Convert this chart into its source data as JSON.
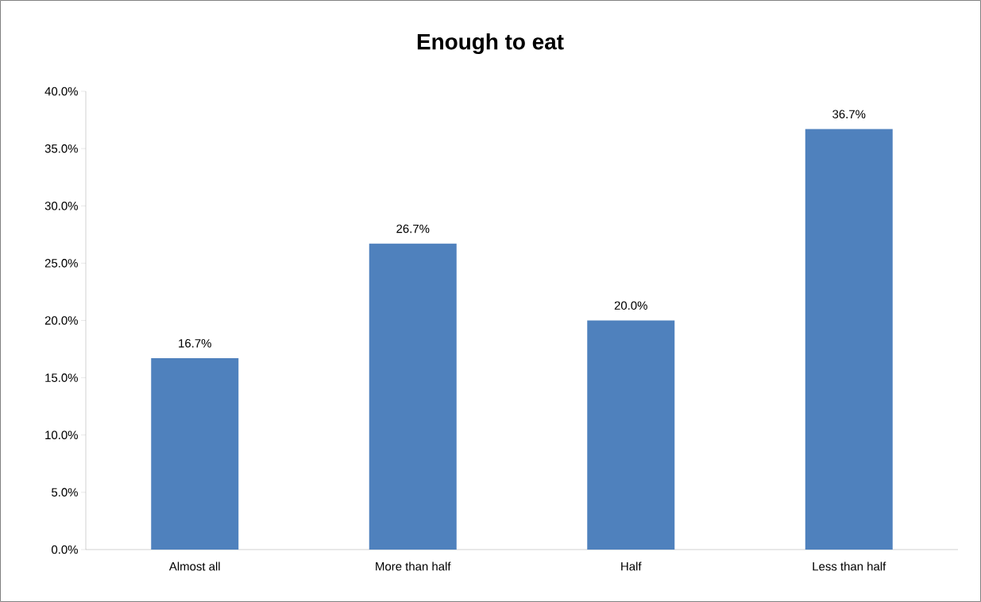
{
  "chart_data": {
    "type": "bar",
    "title": "Enough to eat",
    "categories": [
      "Almost all",
      "More than half",
      "Half",
      "Less than half"
    ],
    "values": [
      16.7,
      26.7,
      20.0,
      36.7
    ],
    "value_labels": [
      "16.7%",
      "26.7%",
      "20.0%",
      "36.7%"
    ],
    "color": "#4f81bd",
    "ylim": [
      0,
      40
    ],
    "yticks": [
      {
        "value": 0,
        "label": "0.0%"
      },
      {
        "value": 5,
        "label": "5.0%"
      },
      {
        "value": 10,
        "label": "10.0%"
      },
      {
        "value": 15,
        "label": "15.0%"
      },
      {
        "value": 20,
        "label": "20.0%"
      },
      {
        "value": 25,
        "label": "25.0%"
      },
      {
        "value": 30,
        "label": "30.0%"
      },
      {
        "value": 35,
        "label": "35.0%"
      },
      {
        "value": 40,
        "label": "40.0%"
      }
    ]
  }
}
